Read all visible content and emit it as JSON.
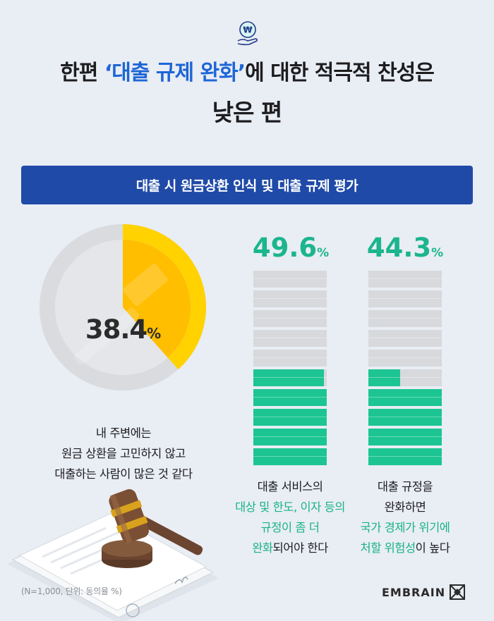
{
  "header": {
    "title_line1_pre": "한편 ",
    "title_line1_highlight": "‘대출 규제 완화’",
    "title_line1_post": "에 대한 적극적 찬성은",
    "title_line2": "낮은 편",
    "icon_glyph": "₩"
  },
  "banner": {
    "label": "대출 시 원금상환 인식 및 대출 규제 평가"
  },
  "donut": {
    "value": 38.4,
    "value_text": "38.4",
    "unit": "%",
    "caption_lines": [
      "내 주변에는",
      "원금 상환을 고민하지 않고",
      "대출하는 사람이 많은 것 같다"
    ]
  },
  "columns": [
    {
      "value": 49.6,
      "value_text": "49.6",
      "unit": "%",
      "caption": [
        {
          "text": "대출 서비스의",
          "green": false
        },
        {
          "text": "대상 및 한도, 이자 등의",
          "green": true
        },
        {
          "text": "규정이 좀 더",
          "green": true
        },
        {
          "text_green": "완화",
          "text_rest": "되어야 한다"
        }
      ]
    },
    {
      "value": 44.3,
      "value_text": "44.3",
      "unit": "%",
      "caption": [
        {
          "text": "대출 규정을",
          "green": false
        },
        {
          "text": "완화하면",
          "green": false
        },
        {
          "text": "국가 경제가 위기에",
          "green": true
        },
        {
          "text_green": "처할 위험성",
          "text_rest": "이 높다"
        }
      ]
    }
  ],
  "footnote": "(N=1,000, 단위: 동의율 %)",
  "brand": "EMBRAIN",
  "colors": {
    "accent_blue": "#1f4aa8",
    "highlight_blue": "#1d66d6",
    "green": "#1cc591",
    "yellow": "#ffd400"
  }
}
